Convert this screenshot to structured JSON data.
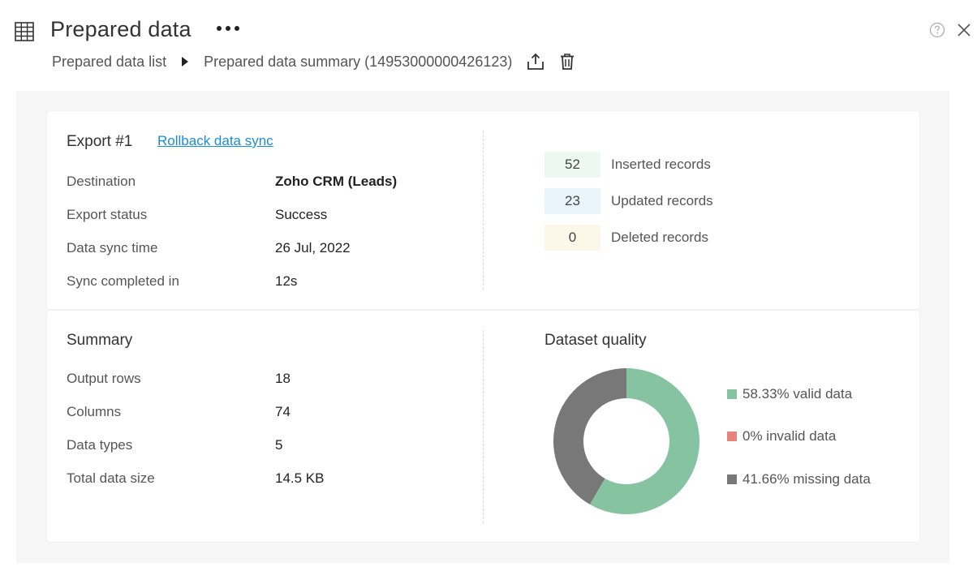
{
  "header": {
    "title": "Prepared data",
    "breadcrumb": {
      "list_label": "Prepared data list",
      "current_label": "Prepared data summary (14953000000426123)"
    }
  },
  "icons": {
    "grid": "table-grid-icon",
    "more": "more-horizontal-icon",
    "help": "help-circle-icon",
    "close": "close-icon",
    "breadcrumb_separator": "caret-right-icon",
    "upload": "upload-icon",
    "delete": "trash-icon"
  },
  "export": {
    "title": "Export #1",
    "rollback_label": "Rollback data sync",
    "fields": [
      {
        "label": "Destination",
        "value": "Zoho CRM (Leads)"
      },
      {
        "label": "Export status",
        "value": "Success"
      },
      {
        "label": "Data sync time",
        "value": "26 Jul, 2022"
      },
      {
        "label": "Sync completed in",
        "value": "12s"
      }
    ],
    "records": [
      {
        "count": "52",
        "label": "Inserted records",
        "color": "#eef8f3"
      },
      {
        "count": "23",
        "label": "Updated records",
        "color": "#eaf5fb"
      },
      {
        "count": "0",
        "label": "Deleted records",
        "color": "#fdf7e9"
      }
    ]
  },
  "summary": {
    "title": "Summary",
    "fields": [
      {
        "label": "Output rows",
        "value": "18"
      },
      {
        "label": "Columns",
        "value": "74"
      },
      {
        "label": "Data types",
        "value": "5"
      },
      {
        "label": "Total data size",
        "value": "14.5 KB"
      }
    ]
  },
  "quality": {
    "title": "Dataset quality",
    "legend": [
      {
        "label": "58.33% valid data",
        "color": "#86c3a0"
      },
      {
        "label": "0% invalid data",
        "color": "#e58579"
      },
      {
        "label": "41.66% missing data",
        "color": "#787878"
      }
    ]
  },
  "chart_data": {
    "type": "pie",
    "categories": [
      "valid data",
      "invalid data",
      "missing data"
    ],
    "values": [
      58.33,
      0,
      41.66
    ],
    "colors": [
      "#86c3a0",
      "#e58579",
      "#787878"
    ]
  }
}
